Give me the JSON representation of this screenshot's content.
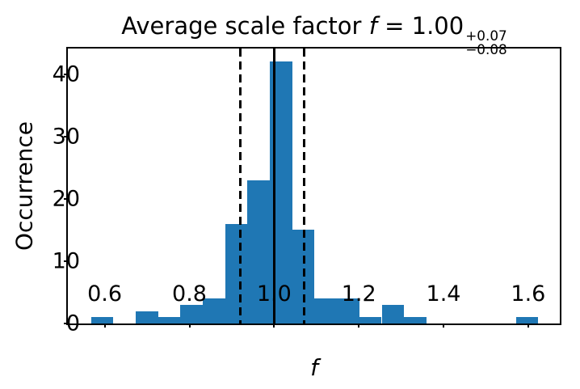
{
  "title": {
    "prefix": "Average scale factor ",
    "var": "f",
    "equals": " = 1.00",
    "plus_error": "+0.07",
    "minus_error": "−0.08"
  },
  "chart_data": {
    "type": "bar",
    "subtype": "histogram",
    "title": "Average scale factor f = 1.00 +0.07 / −0.08",
    "xlabel": "f",
    "ylabel": "Occurrence",
    "bar_color": "#1f77b4",
    "line_color": "#000000",
    "bin_edges": [
      0.5676,
      0.6204,
      0.6732,
      0.726,
      0.7788,
      0.8316,
      0.8844,
      0.9372,
      0.99,
      1.0428,
      1.0956,
      1.1484,
      1.2012,
      1.254,
      1.3068,
      1.3596,
      1.4124,
      1.4652,
      1.518,
      1.5708,
      1.6236
    ],
    "counts": [
      1,
      0,
      2,
      1,
      3,
      4,
      16,
      23,
      42,
      15,
      4,
      4,
      1,
      3,
      1,
      0,
      0,
      0,
      0,
      1
    ],
    "vline_solid": 1.0,
    "vlines_dashed": [
      0.92,
      1.07
    ],
    "x_ticks": [
      {
        "value": 0.6,
        "label": "0.6"
      },
      {
        "value": 0.8,
        "label": "0.8"
      },
      {
        "value": 1.0,
        "label": "1.0"
      },
      {
        "value": 1.2,
        "label": "1.2"
      },
      {
        "value": 1.4,
        "label": "1.4"
      },
      {
        "value": 1.6,
        "label": "1.6"
      }
    ],
    "y_ticks": [
      {
        "value": 0,
        "label": "0"
      },
      {
        "value": 10,
        "label": "10"
      },
      {
        "value": 20,
        "label": "20"
      },
      {
        "value": 30,
        "label": "30"
      },
      {
        "value": 40,
        "label": "40"
      }
    ],
    "xlim": [
      0.513,
      1.6746
    ],
    "ylim": [
      0,
      44.1
    ],
    "grid": false,
    "legend": false
  }
}
